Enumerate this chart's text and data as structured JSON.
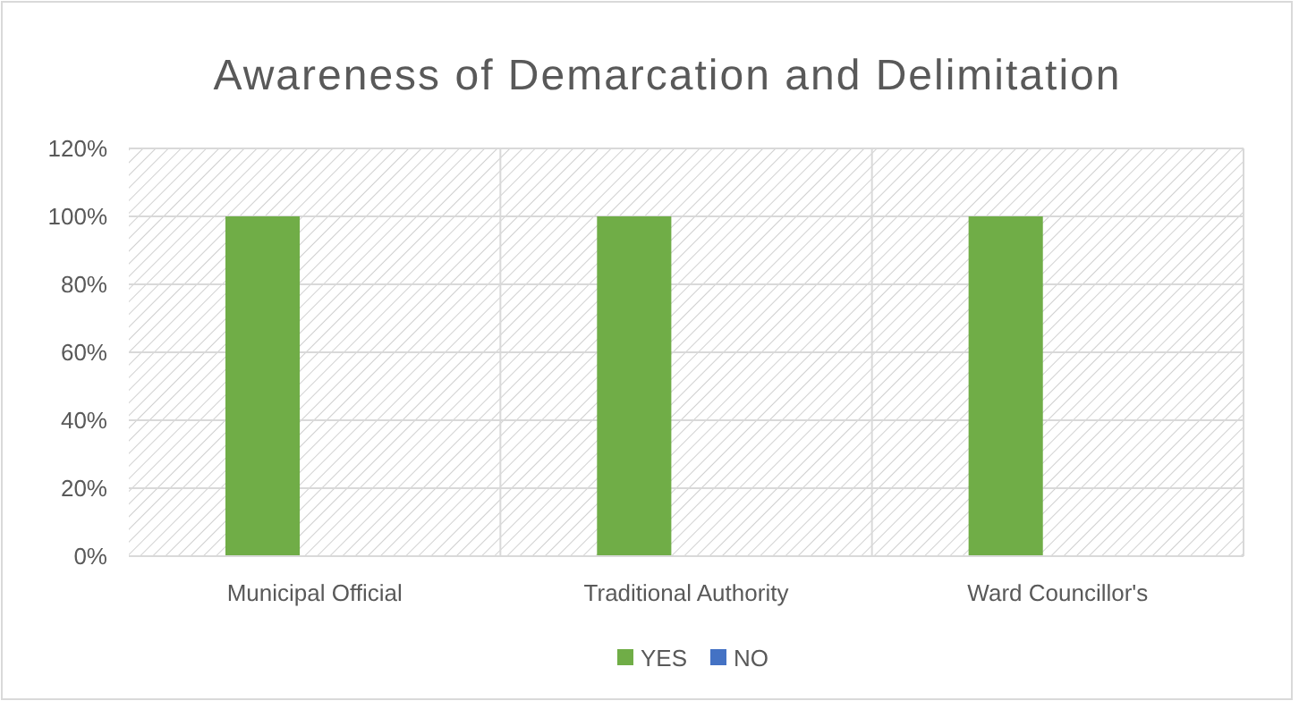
{
  "chart_data": {
    "type": "bar",
    "title": "Awareness of Demarcation and Delimitation",
    "categories": [
      "Municipal Official",
      "Traditional Authority",
      "Ward Councillor's"
    ],
    "series": [
      {
        "name": "YES",
        "color": "#70ad47",
        "values": [
          100,
          100,
          100
        ]
      },
      {
        "name": "NO",
        "color": "#4472c4",
        "values": [
          0,
          0,
          0
        ]
      }
    ],
    "ylim": [
      0,
      120
    ],
    "yticks": [
      {
        "value": 0,
        "label": "0%"
      },
      {
        "value": 20,
        "label": "20%"
      },
      {
        "value": 40,
        "label": "40%"
      },
      {
        "value": 60,
        "label": "60%"
      },
      {
        "value": 80,
        "label": "80%"
      },
      {
        "value": 100,
        "label": "100%"
      },
      {
        "value": 120,
        "label": "120%"
      }
    ],
    "grid": "y",
    "legend": "bottom"
  }
}
